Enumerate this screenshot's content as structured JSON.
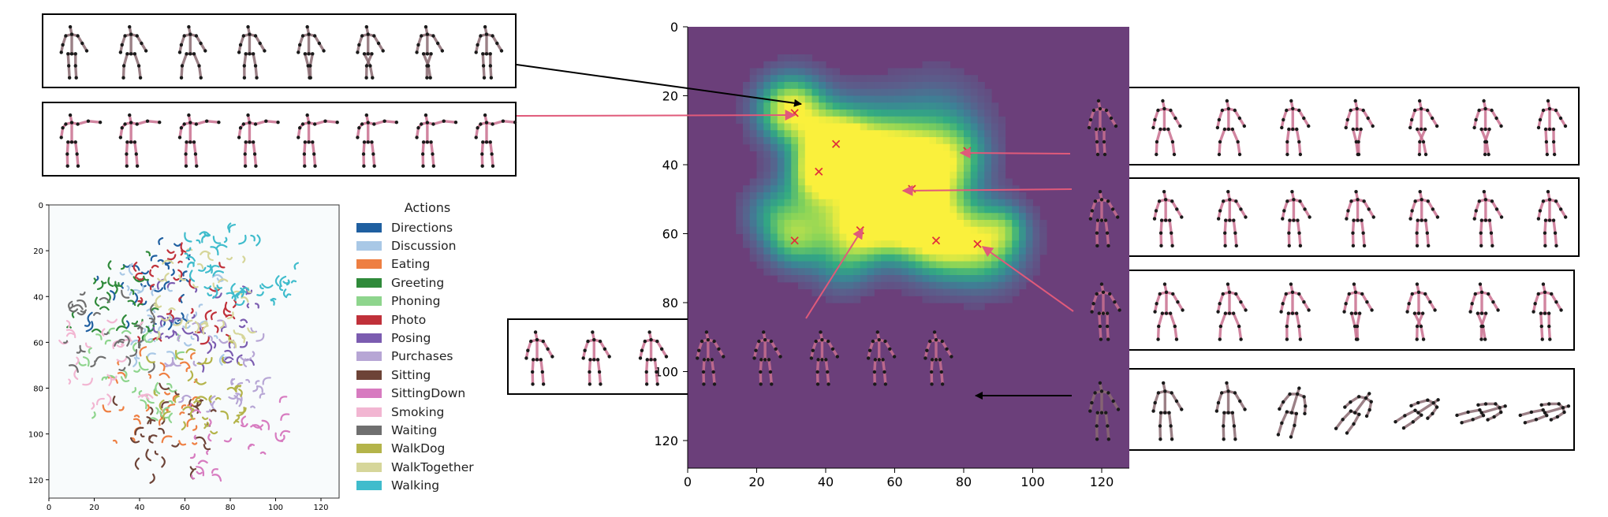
{
  "heatmap": {
    "xticks": [
      0,
      20,
      40,
      60,
      80,
      100,
      120
    ],
    "yticks": [
      0,
      20,
      40,
      60,
      80,
      100,
      120
    ],
    "range": [
      0,
      128
    ],
    "background_color": "#6b3f7a",
    "markers": [
      {
        "x": 31,
        "y": 25
      },
      {
        "x": 43,
        "y": 34
      },
      {
        "x": 38,
        "y": 42
      },
      {
        "x": 81,
        "y": 36
      },
      {
        "x": 65,
        "y": 47
      },
      {
        "x": 50,
        "y": 59
      },
      {
        "x": 31,
        "y": 62
      },
      {
        "x": 72,
        "y": 62
      },
      {
        "x": 84,
        "y": 63
      }
    ],
    "blobs": [
      {
        "x": 30,
        "y": 24,
        "r": 7,
        "v": 1.0
      },
      {
        "x": 43,
        "y": 34,
        "r": 6,
        "v": 0.85
      },
      {
        "x": 38,
        "y": 42,
        "r": 6,
        "v": 0.75
      },
      {
        "x": 65,
        "y": 45,
        "r": 9,
        "v": 1.0
      },
      {
        "x": 50,
        "y": 32,
        "r": 9,
        "v": 0.45
      },
      {
        "x": 58,
        "y": 40,
        "r": 8,
        "v": 0.55
      },
      {
        "x": 72,
        "y": 28,
        "r": 10,
        "v": 0.35
      },
      {
        "x": 78,
        "y": 38,
        "r": 7,
        "v": 0.45
      },
      {
        "x": 50,
        "y": 59,
        "r": 7,
        "v": 0.7
      },
      {
        "x": 31,
        "y": 62,
        "r": 6,
        "v": 0.55
      },
      {
        "x": 72,
        "y": 61,
        "r": 8,
        "v": 0.9
      },
      {
        "x": 86,
        "y": 64,
        "r": 8,
        "v": 0.7
      },
      {
        "x": 40,
        "y": 52,
        "r": 9,
        "v": 0.45
      },
      {
        "x": 24,
        "y": 54,
        "r": 6,
        "v": 0.35
      },
      {
        "x": 60,
        "y": 56,
        "r": 7,
        "v": 0.5
      },
      {
        "x": 92,
        "y": 58,
        "r": 5,
        "v": 0.35
      },
      {
        "x": 45,
        "y": 70,
        "r": 6,
        "v": 0.3
      }
    ]
  },
  "tsne": {
    "xticks": [
      0,
      20,
      40,
      60,
      80,
      100,
      120
    ],
    "yticks": [
      0,
      20,
      40,
      60,
      80,
      100,
      120
    ]
  },
  "legend": {
    "title": "Actions",
    "items": [
      {
        "label": "Directions",
        "color": "#1f5fa0"
      },
      {
        "label": "Discussion",
        "color": "#a9c8e6"
      },
      {
        "label": "Eating",
        "color": "#ee7f42"
      },
      {
        "label": "Greeting",
        "color": "#2f8a3a"
      },
      {
        "label": "Phoning",
        "color": "#8ed58d"
      },
      {
        "label": "Photo",
        "color": "#c0313a"
      },
      {
        "label": "Posing",
        "color": "#7b5cb0"
      },
      {
        "label": "Purchases",
        "color": "#b7a6d5"
      },
      {
        "label": "Sitting",
        "color": "#6d4337"
      },
      {
        "label": "SittingDown",
        "color": "#d77bc0"
      },
      {
        "label": "Smoking",
        "color": "#f2b6d2"
      },
      {
        "label": "Waiting",
        "color": "#6f6f6f"
      },
      {
        "label": "WalkDog",
        "color": "#b4b44a"
      },
      {
        "label": "WalkTogether",
        "color": "#d6d69a"
      },
      {
        "label": "Walking",
        "color": "#3fbccc"
      }
    ]
  },
  "colors": {
    "pink_link": "#e05a7a",
    "black_link": "#000000",
    "marker": "#e0303a",
    "skeleton_pink": "#c97090",
    "skeleton_gray": "#8a6a72",
    "joint": "#1a1a1a"
  }
}
